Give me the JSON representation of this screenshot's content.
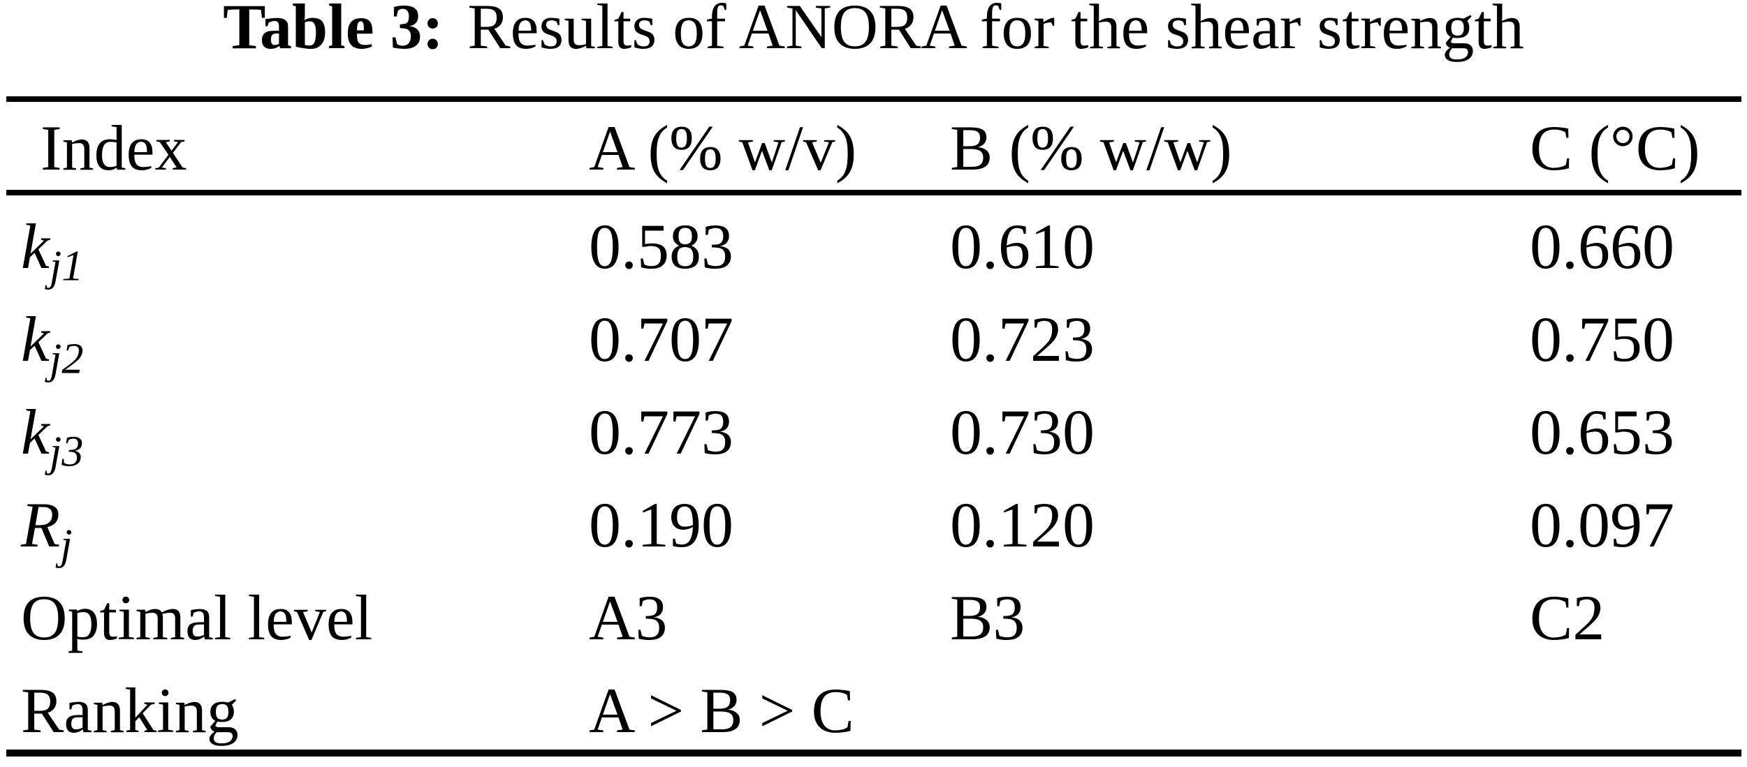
{
  "title": {
    "prefix": "Table 3:",
    "text": "Results of ANORA for the shear strength"
  },
  "table": {
    "columns": [
      "Index",
      "A (% w/v)",
      "B (% w/w)",
      "C (°C)"
    ],
    "rows": [
      {
        "label": {
          "base": "k",
          "sub": "j1"
        },
        "values": [
          "0.583",
          "0.610",
          "0.660"
        ]
      },
      {
        "label": {
          "base": "k",
          "sub": "j2"
        },
        "values": [
          "0.707",
          "0.723",
          "0.750"
        ]
      },
      {
        "label": {
          "base": "k",
          "sub": "j3"
        },
        "values": [
          "0.773",
          "0.730",
          "0.653"
        ]
      },
      {
        "label": {
          "base": "R",
          "sub": "j"
        },
        "values": [
          "0.190",
          "0.120",
          "0.097"
        ]
      },
      {
        "label": {
          "base": "Optimal level",
          "sub": ""
        },
        "values": [
          "A3",
          "B3",
          "C2"
        ]
      },
      {
        "label": {
          "base": "Ranking",
          "sub": ""
        },
        "values": [
          "A > B > C",
          "",
          ""
        ]
      }
    ]
  },
  "colors": {
    "background": "#ffffff",
    "text": "#000000",
    "rule": "#000000"
  }
}
